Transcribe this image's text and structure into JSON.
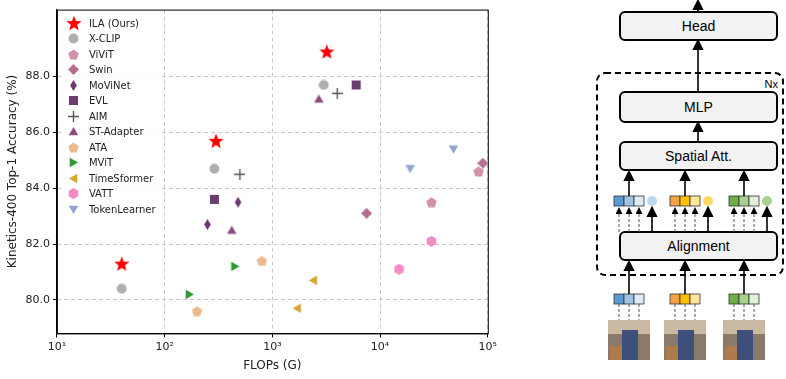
{
  "chart_data": {
    "type": "scatter",
    "x_label": "FLOPs (G)",
    "y_label": "Kinetics-400 Top-1 Accuracy (%)",
    "log": "x",
    "grid": true,
    "legend": "upper left",
    "xlim": [
      10,
      100000
    ],
    "xticks": [
      {
        "value": 10,
        "label": "10¹"
      },
      {
        "value": 100,
        "label": "10²"
      },
      {
        "value": 1000,
        "label": "10³"
      },
      {
        "value": 10000,
        "label": "10⁴"
      },
      {
        "value": 100000,
        "label": "10⁵"
      }
    ],
    "ylim": [
      78.8,
      90.4
    ],
    "yticks": [
      {
        "value": 80,
        "label": "80.0"
      },
      {
        "value": 82,
        "label": "82.0"
      },
      {
        "value": 84,
        "label": "84.0"
      },
      {
        "value": 86,
        "label": "86.0"
      },
      {
        "value": 88,
        "label": "88.0"
      }
    ],
    "series": [
      {
        "name": "ILA (Ours)",
        "color": "#ff0000",
        "marker": "star",
        "x": [
          40,
          300,
          3200
        ],
        "values": [
          81.3,
          85.7,
          88.9
        ]
      },
      {
        "name": "X-CLIP",
        "color": "#b0b0b0",
        "marker": "circle",
        "x": [
          40,
          290,
          3000
        ],
        "values": [
          80.4,
          84.7,
          87.7
        ]
      },
      {
        "name": "ViViT",
        "color": "#d48fab",
        "marker": "pentagon",
        "x": [
          30000,
          82000
        ],
        "values": [
          83.5,
          84.6
        ]
      },
      {
        "name": "Swin",
        "color": "#b36f90",
        "marker": "diamond",
        "x": [
          7500,
          90000
        ],
        "values": [
          83.1,
          84.9
        ]
      },
      {
        "name": "MoViNet",
        "color": "#6e3870",
        "marker": "thin_diamond",
        "x": [
          250,
          480
        ],
        "values": [
          82.7,
          83.5
        ]
      },
      {
        "name": "EVL",
        "color": "#6b3d6e",
        "marker": "square",
        "x": [
          290,
          6000
        ],
        "values": [
          83.6,
          87.7
        ]
      },
      {
        "name": "AIM",
        "color": "#555555",
        "marker": "plus",
        "x": [
          500,
          4000
        ],
        "values": [
          84.5,
          87.4
        ]
      },
      {
        "name": "ST-Adapter",
        "color": "#8e4d80",
        "marker": "triangle_up",
        "x": [
          420,
          2700
        ],
        "values": [
          82.5,
          87.2
        ]
      },
      {
        "name": "ATA",
        "color": "#eab98c",
        "marker": "pentagon",
        "x": [
          200,
          800
        ],
        "values": [
          79.6,
          81.4
        ]
      },
      {
        "name": "MViT",
        "color": "#2e9a2e",
        "marker": "triangle_right",
        "x": [
          170,
          450
        ],
        "values": [
          80.2,
          81.2
        ]
      },
      {
        "name": "TimeSformer",
        "color": "#d6a62c",
        "marker": "triangle_left",
        "x": [
          1700,
          2400
        ],
        "values": [
          79.7,
          80.7
        ]
      },
      {
        "name": "VATT",
        "color": "#f28cc4",
        "marker": "hexagon",
        "x": [
          15000,
          30000
        ],
        "values": [
          81.1,
          82.1
        ]
      },
      {
        "name": "TokenLearner",
        "color": "#8fa6ca",
        "marker": "triangle_down",
        "x": [
          19000,
          48000
        ],
        "values": [
          84.7,
          85.4
        ]
      }
    ]
  },
  "diagram": {
    "head": "Head",
    "block": {
      "repeat": "Nx",
      "layers": [
        "MLP",
        "Spatial Att.",
        "Alignment"
      ]
    }
  }
}
